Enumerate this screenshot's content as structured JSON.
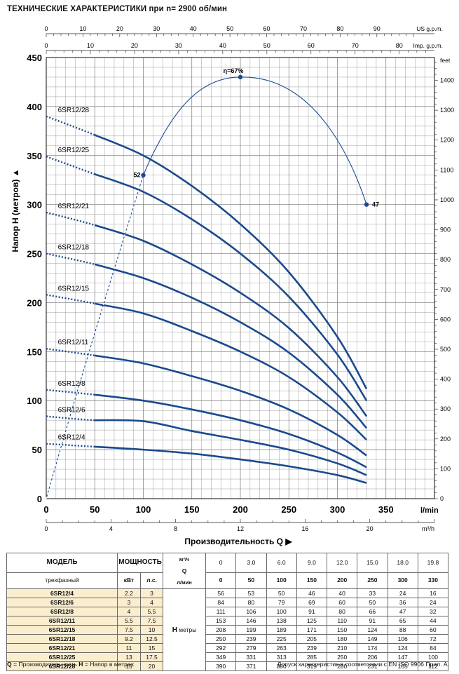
{
  "title": "ТЕХНИЧЕСКИЕ ХАРАКТЕРИСТИКИ при n= 2900 об/мин",
  "colors": {
    "curve": "#1a4a8e",
    "accent": "#1a4a8e",
    "grid": "#555555",
    "table_highlight": "#fbeecf"
  },
  "chart_data": {
    "type": "line",
    "title": "ТЕХНИЧЕСКИЕ ХАРАКТЕРИСТИКИ при n= 2900 об/мин",
    "xlabel": "Производительность Q",
    "ylabel": "Напор H (метров)",
    "x_unit": "l/min",
    "xlim": [
      0,
      400
    ],
    "ylim": [
      0,
      450
    ],
    "x_ticks": [
      0,
      50,
      100,
      150,
      200,
      250,
      300,
      350
    ],
    "y_ticks": [
      0,
      50,
      100,
      150,
      200,
      250,
      300,
      350,
      400,
      450
    ],
    "secondary_axes": {
      "us_gpm": {
        "label": "US g.p.m.",
        "ticks": [
          0,
          10,
          20,
          30,
          40,
          50,
          60,
          70,
          80,
          90
        ]
      },
      "imp_gpm": {
        "label": "Imp. g.p.m.",
        "ticks": [
          0,
          10,
          20,
          30,
          40,
          50,
          60,
          70,
          80
        ]
      },
      "m3h": {
        "label": "m³/h",
        "ticks": [
          0,
          4,
          8,
          12,
          16,
          20
        ]
      },
      "feet": {
        "label": "feet",
        "ticks": [
          0,
          100,
          200,
          300,
          400,
          500,
          600,
          700,
          800,
          900,
          1000,
          1100,
          1200,
          1300,
          1400
        ]
      }
    },
    "x": [
      0,
      50,
      100,
      150,
      200,
      250,
      300,
      330
    ],
    "series": [
      {
        "name": "6SR12/28",
        "values": [
          390,
          371,
          350,
          319,
          280,
          231,
          165,
          112
        ]
      },
      {
        "name": "6SR12/25",
        "values": [
          349,
          331,
          313,
          285,
          250,
          206,
          147,
          100
        ]
      },
      {
        "name": "6SR12/21",
        "values": [
          292,
          279,
          263,
          239,
          210,
          174,
          124,
          84
        ]
      },
      {
        "name": "6SR12/18",
        "values": [
          250,
          239,
          225,
          205,
          180,
          149,
          106,
          72
        ]
      },
      {
        "name": "6SR12/15",
        "values": [
          208,
          199,
          189,
          171,
          150,
          124,
          88,
          60
        ]
      },
      {
        "name": "6SR12/11",
        "values": [
          153,
          146,
          138,
          125,
          110,
          91,
          65,
          44
        ]
      },
      {
        "name": "6SR12/8",
        "values": [
          111,
          106,
          100,
          91,
          80,
          66,
          47,
          32
        ]
      },
      {
        "name": "6SR12/6",
        "values": [
          84,
          80,
          79,
          69,
          60,
          50,
          36,
          24
        ]
      },
      {
        "name": "6SR12/4",
        "values": [
          56,
          53,
          50,
          46,
          40,
          33,
          24,
          16
        ]
      }
    ],
    "efficiency": {
      "label_peak": "η=67%",
      "points": [
        {
          "x": 100,
          "y": 330,
          "label": "52"
        },
        {
          "x": 200,
          "y": 430,
          "label": "η=67%"
        },
        {
          "x": 330,
          "y": 300,
          "label": "47"
        }
      ]
    }
  },
  "table": {
    "model_header": "МОДЕЛЬ",
    "model_sub": "трехфазный",
    "power_header": "МОЩНОСТЬ",
    "kw_label": "кВт",
    "hp_label": "л.с.",
    "q_label": "Q",
    "h_label": "H",
    "h_unit": "метры",
    "m3h_unit": "м³/ч",
    "lmin_unit": "л/мин",
    "m3h_values": [
      "0",
      "3.0",
      "6.0",
      "9.0",
      "12.0",
      "15.0",
      "18.0",
      "19.8"
    ],
    "lmin_values": [
      "0",
      "50",
      "100",
      "150",
      "200",
      "250",
      "300",
      "330"
    ],
    "rows": [
      {
        "model": "6SR12/4",
        "kw": "2.2",
        "hp": "3",
        "h": [
          "56",
          "53",
          "50",
          "46",
          "40",
          "33",
          "24",
          "16"
        ]
      },
      {
        "model": "6SR12/6",
        "kw": "3",
        "hp": "4",
        "h": [
          "84",
          "80",
          "79",
          "69",
          "60",
          "50",
          "36",
          "24"
        ]
      },
      {
        "model": "6SR12/8",
        "kw": "4",
        "hp": "5.5",
        "h": [
          "111",
          "106",
          "100",
          "91",
          "80",
          "66",
          "47",
          "32"
        ]
      },
      {
        "model": "6SR12/11",
        "kw": "5.5",
        "hp": "7.5",
        "h": [
          "153",
          "146",
          "138",
          "125",
          "110",
          "91",
          "65",
          "44"
        ]
      },
      {
        "model": "6SR12/15",
        "kw": "7.5",
        "hp": "10",
        "h": [
          "208",
          "199",
          "189",
          "171",
          "150",
          "124",
          "88",
          "60"
        ]
      },
      {
        "model": "6SR12/18",
        "kw": "9.2",
        "hp": "12.5",
        "h": [
          "250",
          "239",
          "225",
          "205",
          "180",
          "149",
          "106",
          "72"
        ]
      },
      {
        "model": "6SR12/21",
        "kw": "11",
        "hp": "15",
        "h": [
          "292",
          "279",
          "263",
          "239",
          "210",
          "174",
          "124",
          "84"
        ]
      },
      {
        "model": "6SR12/25",
        "kw": "13",
        "hp": "17.5",
        "h": [
          "349",
          "331",
          "313",
          "285",
          "250",
          "206",
          "147",
          "100"
        ]
      },
      {
        "model": "6SR12/28",
        "kw": "15",
        "hp": "20",
        "h": [
          "390",
          "371",
          "350",
          "319",
          "280",
          "231",
          "165",
          "112"
        ]
      }
    ]
  },
  "footer": {
    "left_q": "Q",
    "left_q_text": " = Производительность ",
    "left_h": "H",
    "left_h_text": " = Напор в метрах",
    "right": "Допуск характеристик в соответствии с EN ISO 9906 Прил. A."
  }
}
